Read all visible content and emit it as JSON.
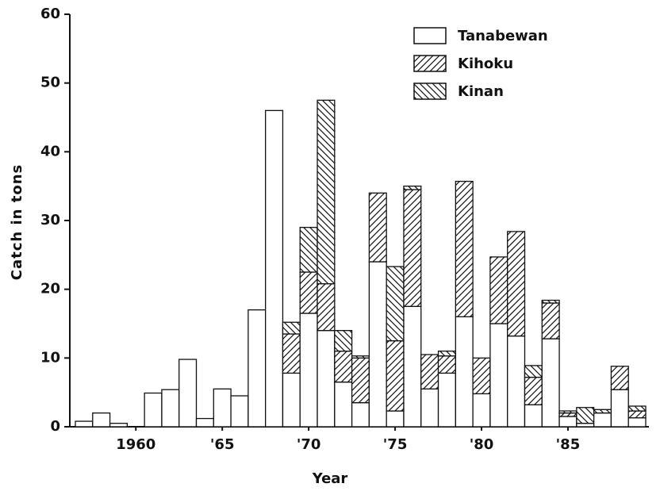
{
  "chart_data": {
    "type": "stacked_bar",
    "xlabel": "Year",
    "ylabel": "Catch in tons",
    "categories": [
      null,
      null,
      null,
      "1960",
      null,
      null,
      null,
      null,
      "'65",
      null,
      null,
      null,
      null,
      "'70",
      null,
      null,
      null,
      null,
      "'75",
      null,
      null,
      null,
      null,
      "'80",
      null,
      null,
      null,
      null,
      "'85",
      null,
      null,
      null,
      null
    ],
    "series": [
      {
        "name": "Tanabewan",
        "color": "#ffffff",
        "pattern": "none",
        "values": [
          0.8,
          2,
          0.5,
          0,
          4.9,
          5.4,
          9.8,
          1.2,
          5.5,
          4.5,
          17,
          46,
          7.8,
          16.5,
          14,
          6.5,
          3.5,
          24,
          2.3,
          17.5,
          5.5,
          7.8,
          16,
          4.8,
          15,
          13.2,
          3.2,
          12.8,
          1.5,
          0.5,
          2,
          5.4,
          1.3
        ]
      },
      {
        "name": "Kihoku",
        "color": "#ffffff",
        "pattern": "diagonal",
        "values": [
          0,
          0,
          0,
          0,
          0,
          0,
          0,
          0,
          0,
          0,
          0,
          0,
          5.7,
          6,
          6.8,
          4.5,
          6.5,
          10,
          10.2,
          17,
          5,
          2.5,
          19.7,
          5.2,
          9.7,
          15.2,
          4,
          5.2,
          0.5,
          0,
          0,
          3.4,
          1
        ]
      },
      {
        "name": "Kinan",
        "color": "#ffffff",
        "pattern": "back-diagonal",
        "values": [
          0,
          0,
          0,
          0,
          0,
          0,
          0,
          0,
          0,
          0,
          0,
          0,
          1.7,
          6.5,
          26.7,
          3,
          0.3,
          0,
          10.8,
          0.5,
          0,
          0.7,
          0,
          0,
          0,
          0,
          1.7,
          0.4,
          0.3,
          2.3,
          0.5,
          0,
          0.7
        ]
      }
    ],
    "ylim": [
      0,
      60
    ],
    "yticks": [
      0,
      10,
      20,
      30,
      40,
      50,
      60
    ],
    "legend": "upper right"
  }
}
